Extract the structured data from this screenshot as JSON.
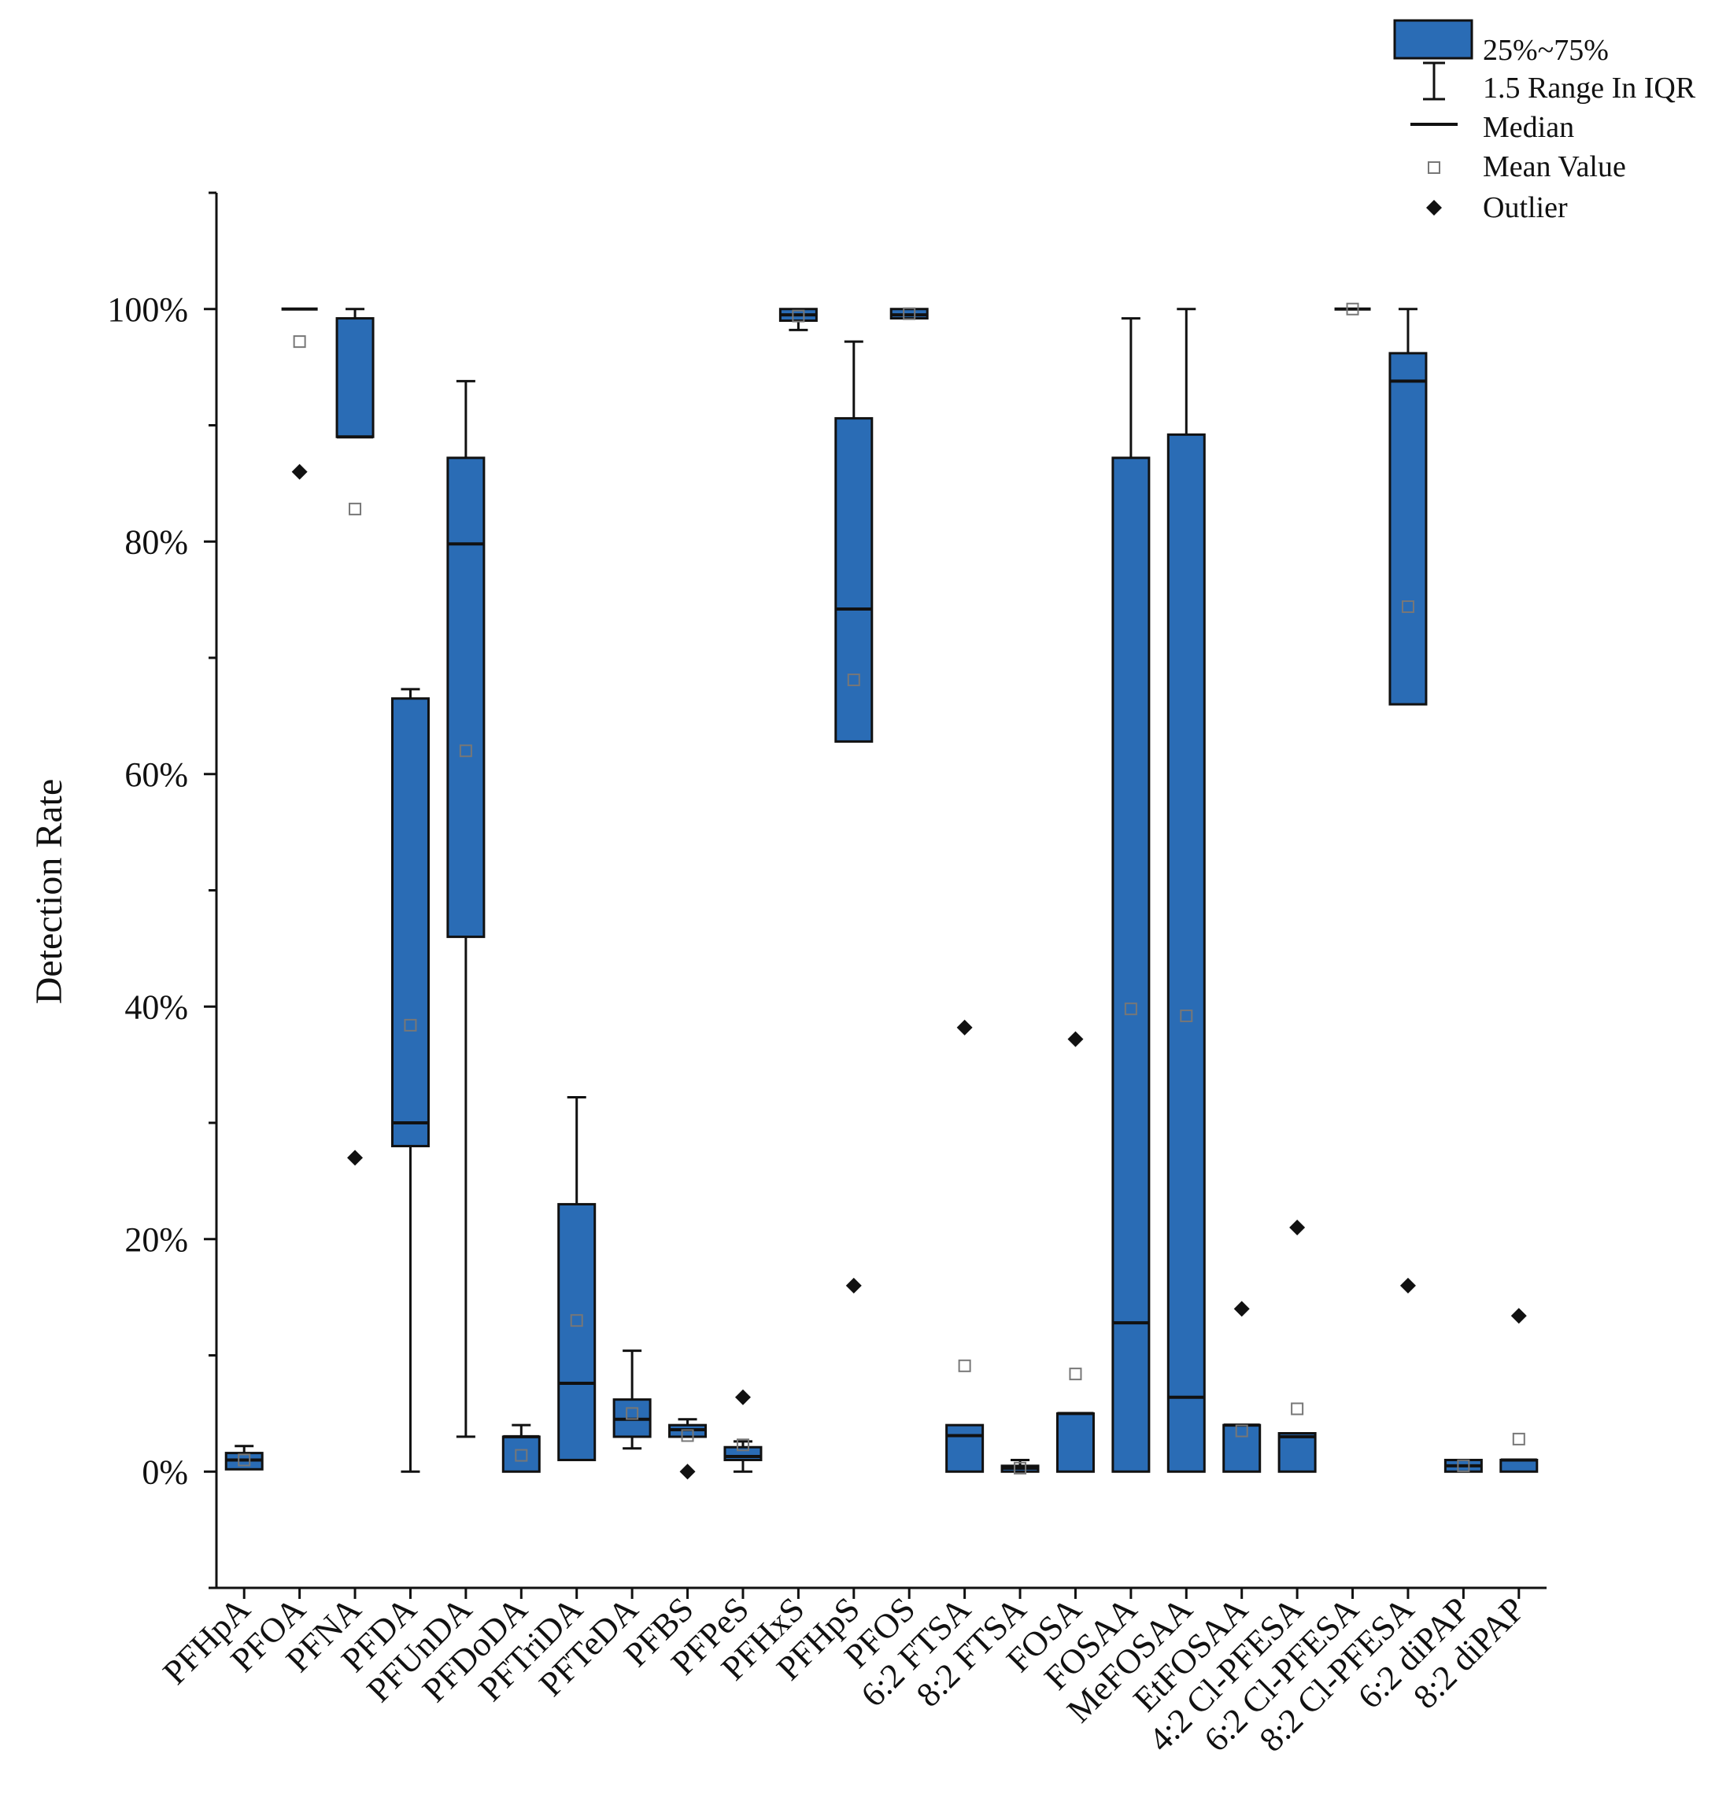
{
  "chart_data": {
    "type": "boxplot",
    "title": "",
    "xlabel": "",
    "ylabel": "Detection Rate",
    "ylim": [
      -10,
      110
    ],
    "yticks": [
      0,
      20,
      40,
      60,
      80,
      100
    ],
    "ytick_labels": [
      "0%",
      "20%",
      "40%",
      "60%",
      "80%",
      "100%"
    ],
    "box_color": "#2a6cb5",
    "legend": {
      "position": "top-right",
      "items": [
        {
          "key": "box",
          "label": "25%~75%"
        },
        {
          "key": "whisker",
          "label": "1.5 Range In IQR"
        },
        {
          "key": "median",
          "label": "Median"
        },
        {
          "key": "mean",
          "label": "Mean Value"
        },
        {
          "key": "outlier",
          "label": "Outlier"
        }
      ]
    },
    "categories": [
      "PFHpA",
      "PFOA",
      "PFNA",
      "PFDA",
      "PFUnDA",
      "PFDoDA",
      "PFTriDA",
      "PFTeDA",
      "PFBS",
      "PFPeS",
      "PFHxS",
      "PFHpS",
      "PFOS",
      "6:2 FTSA",
      "8:2 FTSA",
      "FOSA",
      "FOSAA",
      "MeFOSAA",
      "EtFOSAA",
      "4:2 Cl-PFESA",
      "6:2 Cl-PFESA",
      "8:2 Cl-PFESA",
      "6:2 diPAP",
      "8:2 diPAP"
    ],
    "boxes": [
      {
        "q1": 0.2,
        "median": 1.0,
        "q3": 1.6,
        "whisker_low": 0.2,
        "whisker_high": 2.2,
        "mean": 1.0,
        "outliers": []
      },
      {
        "q1": 100,
        "median": 100,
        "q3": 100,
        "whisker_low": 100,
        "whisker_high": 100,
        "mean": 97.2,
        "outliers": [
          86
        ]
      },
      {
        "q1": 89,
        "median": 89,
        "q3": 99.2,
        "whisker_low": 89,
        "whisker_high": 100,
        "mean": 82.8,
        "outliers": [
          27
        ]
      },
      {
        "q1": 28,
        "median": 30,
        "q3": 66.5,
        "whisker_low": 0,
        "whisker_high": 67.3,
        "mean": 38.4,
        "outliers": []
      },
      {
        "q1": 46,
        "median": 79.8,
        "q3": 87.2,
        "whisker_low": 3,
        "whisker_high": 93.8,
        "mean": 62,
        "outliers": []
      },
      {
        "q1": 0,
        "median": 3,
        "q3": 3,
        "whisker_low": 0,
        "whisker_high": 4,
        "mean": 1.4,
        "outliers": []
      },
      {
        "q1": 1,
        "median": 7.6,
        "q3": 23,
        "whisker_low": 1,
        "whisker_high": 32.2,
        "mean": 13,
        "outliers": []
      },
      {
        "q1": 3,
        "median": 4.5,
        "q3": 6.2,
        "whisker_low": 2,
        "whisker_high": 10.4,
        "mean": 5,
        "outliers": []
      },
      {
        "q1": 3,
        "median": 3.6,
        "q3": 4,
        "whisker_low": 3,
        "whisker_high": 4.5,
        "mean": 3.1,
        "outliers": [
          0
        ]
      },
      {
        "q1": 1,
        "median": 1.3,
        "q3": 2.1,
        "whisker_low": 0,
        "whisker_high": 2.6,
        "mean": 2.3,
        "outliers": [
          6.4
        ]
      },
      {
        "q1": 99,
        "median": 99.5,
        "q3": 100,
        "whisker_low": 98.2,
        "whisker_high": 100,
        "mean": 99.4,
        "outliers": []
      },
      {
        "q1": 62.8,
        "median": 74.2,
        "q3": 90.6,
        "whisker_low": 62.8,
        "whisker_high": 97.2,
        "mean": 68.1,
        "outliers": [
          16
        ]
      },
      {
        "q1": 99.2,
        "median": 99.5,
        "q3": 100,
        "whisker_low": 99.2,
        "whisker_high": 100,
        "mean": 99.6,
        "outliers": []
      },
      {
        "q1": 0,
        "median": 3.1,
        "q3": 4,
        "whisker_low": 0,
        "whisker_high": 4,
        "mean": 9.1,
        "outliers": [
          38.2
        ]
      },
      {
        "q1": 0,
        "median": 0.3,
        "q3": 0.5,
        "whisker_low": 0,
        "whisker_high": 1,
        "mean": 0.3,
        "outliers": []
      },
      {
        "q1": 0,
        "median": 5,
        "q3": 5,
        "whisker_low": 0,
        "whisker_high": 5,
        "mean": 8.4,
        "outliers": [
          37.2
        ]
      },
      {
        "q1": 0,
        "median": 12.8,
        "q3": 87.2,
        "whisker_low": 0,
        "whisker_high": 99.2,
        "mean": 39.8,
        "outliers": []
      },
      {
        "q1": 0,
        "median": 6.4,
        "q3": 89.2,
        "whisker_low": 0,
        "whisker_high": 100,
        "mean": 39.2,
        "outliers": []
      },
      {
        "q1": 0,
        "median": 4,
        "q3": 4,
        "whisker_low": 0,
        "whisker_high": 4,
        "mean": 3.5,
        "outliers": [
          14
        ]
      },
      {
        "q1": 0,
        "median": 3,
        "q3": 3.3,
        "whisker_low": 0,
        "whisker_high": 3.3,
        "mean": 5.4,
        "outliers": [
          21
        ]
      },
      {
        "q1": 100,
        "median": 100,
        "q3": 100,
        "whisker_low": 100,
        "whisker_high": 100,
        "mean": 100,
        "outliers": []
      },
      {
        "q1": 66,
        "median": 93.8,
        "q3": 96.2,
        "whisker_low": 66,
        "whisker_high": 100,
        "mean": 74.4,
        "outliers": [
          16
        ]
      },
      {
        "q1": 0,
        "median": 0.5,
        "q3": 1,
        "whisker_low": 0,
        "whisker_high": 1,
        "mean": 0.5,
        "outliers": []
      },
      {
        "q1": 0,
        "median": 1,
        "q3": 1,
        "whisker_low": 0,
        "whisker_high": 1,
        "mean": 2.8,
        "outliers": [
          13.4
        ]
      }
    ]
  }
}
